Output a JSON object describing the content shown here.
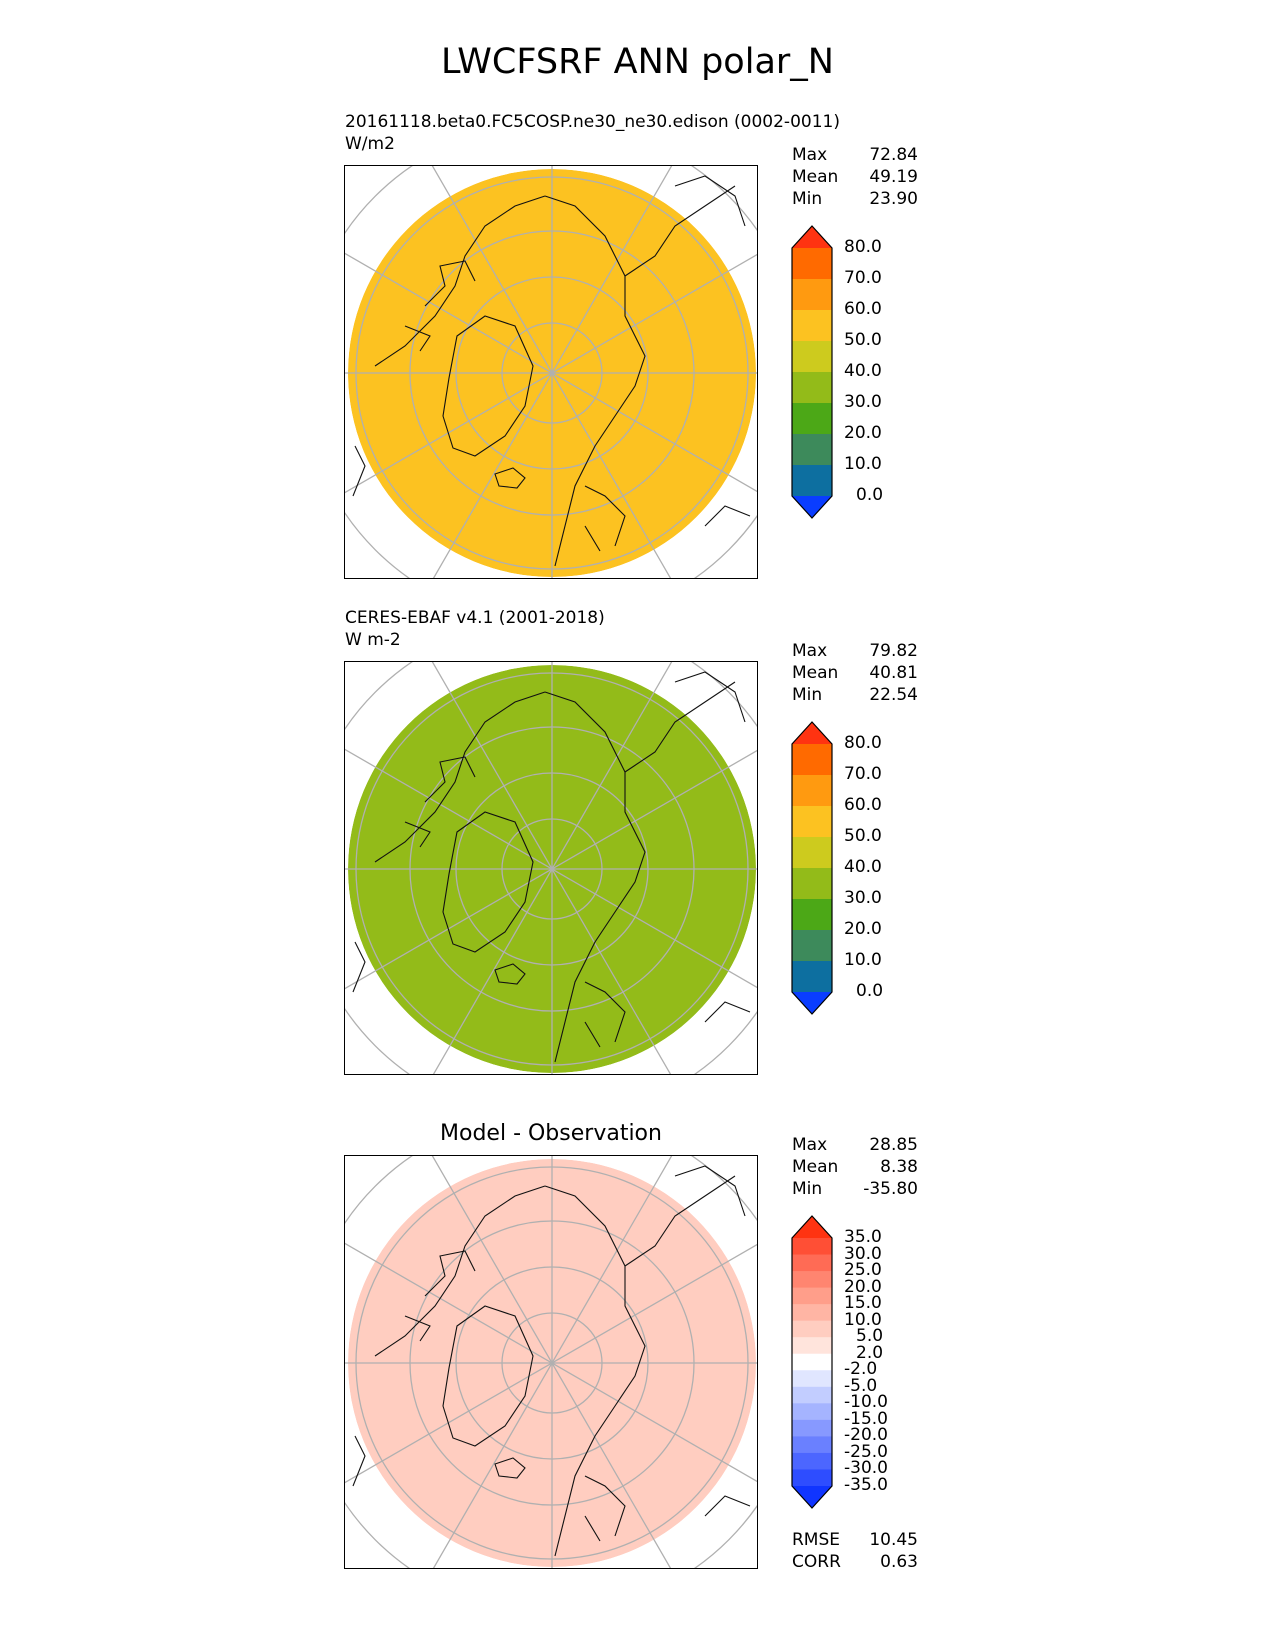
{
  "main_title": "LWCFSRF ANN polar_N",
  "panels": [
    {
      "id": "model",
      "title_line1": "20161118.beta0.FC5COSP.ne30_ne30.edison (0002-0011)",
      "title_line2": "W/m2",
      "stats": [
        {
          "label": "Max",
          "value": "72.84"
        },
        {
          "label": "Mean",
          "value": "49.19"
        },
        {
          "label": "Min",
          "value": "23.90"
        }
      ]
    },
    {
      "id": "obs",
      "title_line1": "CERES-EBAF v4.1 (2001-2018)",
      "title_line2": "W m-2",
      "stats": [
        {
          "label": "Max",
          "value": "79.82"
        },
        {
          "label": "Mean",
          "value": "40.81"
        },
        {
          "label": "Min",
          "value": "22.54"
        }
      ]
    },
    {
      "id": "diff",
      "title_line1": "Model - Observation",
      "title_line2": "",
      "stats": [
        {
          "label": "Max",
          "value": "28.85"
        },
        {
          "label": "Mean",
          "value": "8.38"
        },
        {
          "label": "Min",
          "value": "-35.80"
        }
      ],
      "extra_stats": [
        {
          "label": "RMSE",
          "value": "10.45"
        },
        {
          "label": "CORR",
          "value": "0.63"
        }
      ]
    }
  ],
  "chart_data": [
    {
      "type": "heatmap",
      "projection": "north-polar-stereographic",
      "title": "20161118.beta0.FC5COSP.ne30_ne30.edison (0002-0011)",
      "units": "W/m2",
      "colorbar_levels": [
        "80.0",
        "70.0",
        "60.0",
        "50.0",
        "40.0",
        "30.0",
        "20.0",
        "10.0",
        "0.0"
      ],
      "colorbar_colors": [
        "#ff3311",
        "#ff6a00",
        "#ff9a10",
        "#fcc221",
        "#cdcb1e",
        "#93bb19",
        "#4ca817",
        "#3d8a5b",
        "#0d6fa0",
        "#0a3dff"
      ],
      "stats": {
        "max": 72.84,
        "mean": 49.19,
        "min": 23.9
      }
    },
    {
      "type": "heatmap",
      "projection": "north-polar-stereographic",
      "title": "CERES-EBAF v4.1 (2001-2018)",
      "units": "W m-2",
      "colorbar_levels": [
        "80.0",
        "70.0",
        "60.0",
        "50.0",
        "40.0",
        "30.0",
        "20.0",
        "10.0",
        "0.0"
      ],
      "colorbar_colors": [
        "#ff3311",
        "#ff6a00",
        "#ff9a10",
        "#fcc221",
        "#cdcb1e",
        "#93bb19",
        "#4ca817",
        "#3d8a5b",
        "#0d6fa0",
        "#0a3dff"
      ],
      "stats": {
        "max": 79.82,
        "mean": 40.81,
        "min": 22.54
      }
    },
    {
      "type": "heatmap",
      "projection": "north-polar-stereographic",
      "title": "Model - Observation",
      "colorbar_levels": [
        "35.0",
        "30.0",
        "25.0",
        "20.0",
        "15.0",
        "10.0",
        "5.0",
        "2.0",
        "-2.0",
        "-5.0",
        "-10.0",
        "-15.0",
        "-20.0",
        "-25.0",
        "-30.0",
        "-35.0"
      ],
      "colorbar_colors": [
        "#ff3311",
        "#ff4f35",
        "#ff6b55",
        "#ff8570",
        "#ff9e8a",
        "#ffb5a4",
        "#ffcdc0",
        "#ffe4dc",
        "#ffffff",
        "#e0e6ff",
        "#c2cdff",
        "#a5b4ff",
        "#8799ff",
        "#6a80ff",
        "#4c66ff",
        "#2e4dff",
        "#1035ff"
      ],
      "stats": {
        "max": 28.85,
        "mean": 8.38,
        "min": -35.8,
        "rmse": 10.45,
        "corr": 0.63
      }
    }
  ]
}
